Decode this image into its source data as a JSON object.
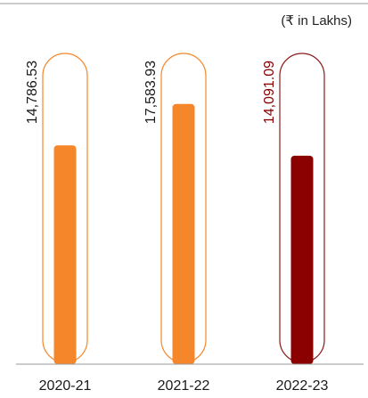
{
  "chart_data": {
    "type": "bar",
    "unit_label": "(₹ in Lakhs)",
    "categories": [
      "2020-21",
      "2021-22",
      "2022-23"
    ],
    "values": [
      14786.53,
      17583.93,
      14091.09
    ],
    "value_labels": [
      "14,786.53",
      "17,583.93",
      "14,091.09"
    ],
    "ylim": [
      0,
      21000
    ],
    "grid": false,
    "bar_colors": [
      "#F5872A",
      "#F5872A",
      "#8B0000"
    ],
    "outline_colors": [
      "#F5872A",
      "#F5872A",
      "#8B1A1A"
    ],
    "label_colors": [
      "#1a1a1a",
      "#1a1a1a",
      "#8B0000"
    ],
    "axis_color": "#9a9a9a"
  }
}
